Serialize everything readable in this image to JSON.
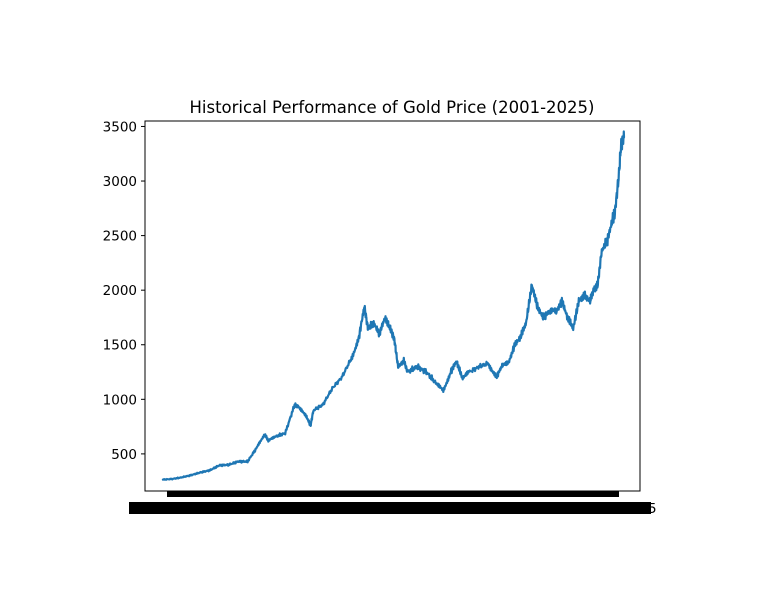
{
  "chart_data": {
    "type": "line",
    "title": "Historical Performance of Gold Price (2001-2025)",
    "xlabel": "",
    "ylabel": "",
    "ylim": [
      160,
      3550
    ],
    "y_ticks": [
      500,
      1000,
      1500,
      2000,
      2500,
      3000,
      3500
    ],
    "x_tick_labels_note": "dense overlapping date tick labels rendered as a black band",
    "x_last_tick_fragment": "5",
    "grid": false,
    "line_color": "#1f77b4",
    "series": [
      {
        "x": [
          2001.0,
          2001.5,
          2002.0,
          2002.5,
          2003.0,
          2003.5,
          2004.0,
          2004.5,
          2005.0,
          2005.5,
          2006.0,
          2006.4,
          2006.6,
          2007.0,
          2007.5,
          2008.0,
          2008.2,
          2008.6,
          2008.85,
          2009.0,
          2009.5,
          2010.0,
          2010.5,
          2011.0,
          2011.4,
          2011.7,
          2011.9,
          2012.2,
          2012.5,
          2012.8,
          2013.0,
          2013.3,
          2013.5,
          2013.8,
          2014.0,
          2014.5,
          2015.0,
          2015.5,
          2015.9,
          2016.3,
          2016.6,
          2016.9,
          2017.3,
          2017.8,
          2018.3,
          2018.7,
          2019.0,
          2019.4,
          2019.7,
          2020.0,
          2020.3,
          2020.6,
          2020.9,
          2021.2,
          2021.5,
          2021.9,
          2022.2,
          2022.5,
          2022.8,
          2023.1,
          2023.4,
          2023.7,
          2023.9,
          2024.1,
          2024.3,
          2024.6,
          2024.9,
          2025.0,
          2025.2,
          2025.35,
          2025.5
        ],
        "y": [
          265,
          270,
          285,
          305,
          330,
          350,
          395,
          400,
          430,
          430,
          560,
          680,
          620,
          660,
          690,
          950,
          930,
          850,
          760,
          900,
          950,
          1100,
          1200,
          1370,
          1550,
          1850,
          1650,
          1700,
          1600,
          1750,
          1680,
          1550,
          1300,
          1350,
          1250,
          1300,
          1250,
          1150,
          1080,
          1250,
          1350,
          1200,
          1250,
          1300,
          1330,
          1200,
          1300,
          1350,
          1500,
          1570,
          1700,
          2050,
          1850,
          1750,
          1800,
          1800,
          1900,
          1750,
          1650,
          1900,
          1950,
          1900,
          2000,
          2050,
          2350,
          2450,
          2650,
          2700,
          3000,
          3350,
          3400
        ]
      }
    ]
  }
}
